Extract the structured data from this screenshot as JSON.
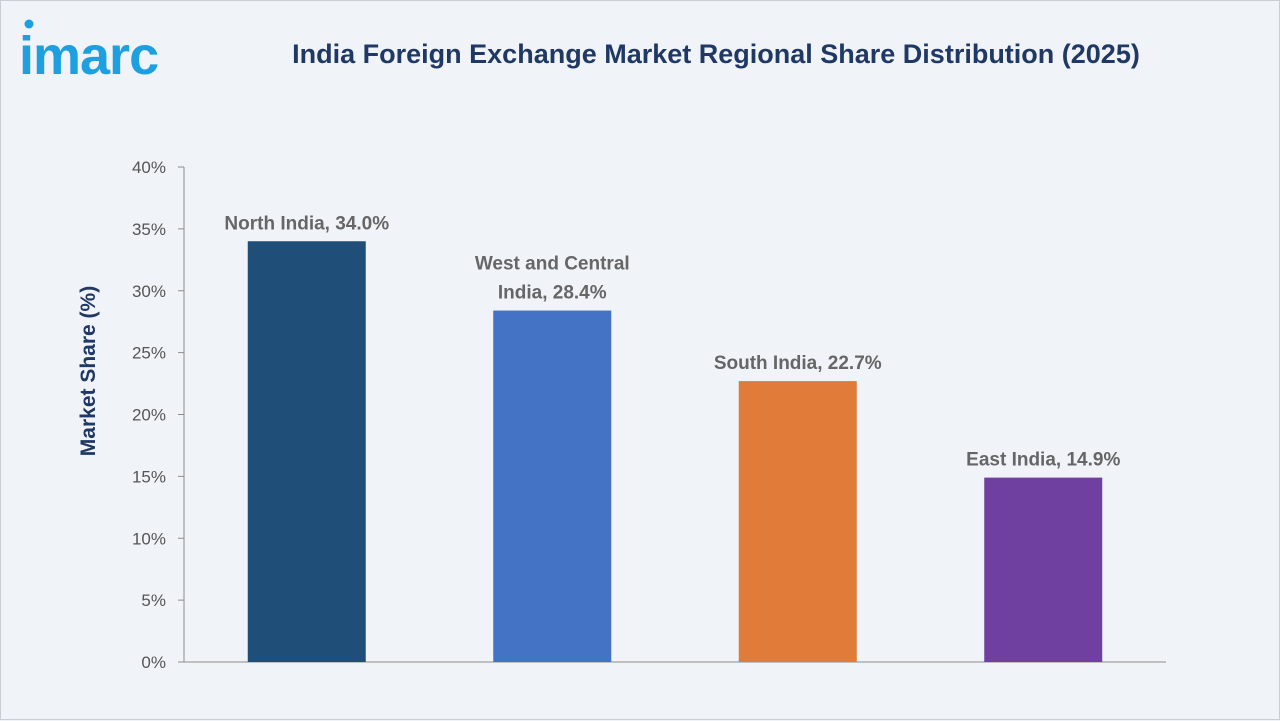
{
  "brand": {
    "logo_text": "imarc",
    "logo_color": "#1ea0e0"
  },
  "chart_data": {
    "type": "bar",
    "title": "India Foreign Exchange Market Regional Share Distribution (2025)",
    "xlabel": "",
    "ylabel": "Market Share (%)",
    "ylim": [
      0,
      40
    ],
    "yticks": [
      "0%",
      "5%",
      "10%",
      "15%",
      "20%",
      "25%",
      "30%",
      "35%",
      "40%"
    ],
    "categories": [
      "North India",
      "West and Central India",
      "South India",
      "East India"
    ],
    "values": [
      34.0,
      28.4,
      22.7,
      14.9
    ],
    "data_labels": [
      [
        "North India, 34.0%"
      ],
      [
        "West and Central",
        "India, 28.4%"
      ],
      [
        "South India, 22.7%"
      ],
      [
        "East India, 14.9%"
      ]
    ],
    "colors": [
      "#1f4e79",
      "#4472c4",
      "#e07b39",
      "#7040a0"
    ],
    "grid": false,
    "legend": "none"
  }
}
